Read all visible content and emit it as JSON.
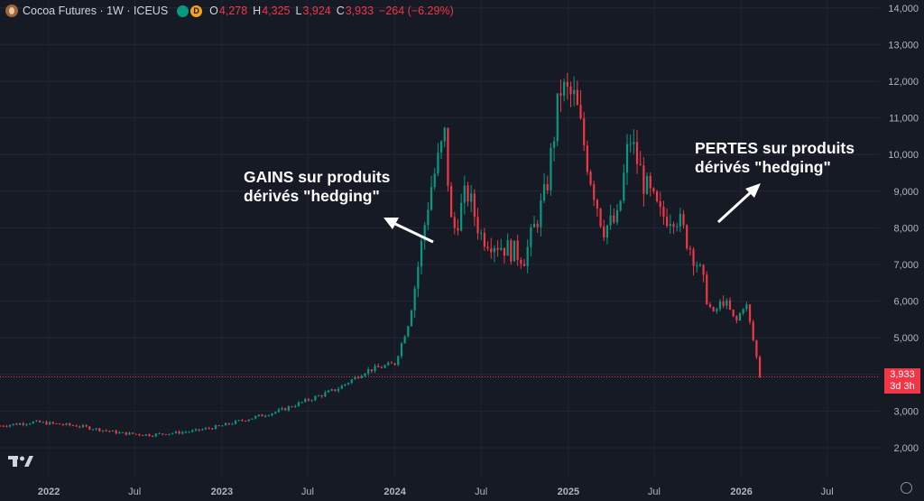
{
  "header": {
    "title": "Cocoa Futures · 1W · ICEUS",
    "open_label": "O",
    "open": "4,278",
    "high_label": "H",
    "high": "4,325",
    "low_label": "L",
    "low": "3,924",
    "close_label": "C",
    "close": "3,933",
    "change": "−264 (−6.29%)",
    "badge_d": "D"
  },
  "price_tag": {
    "price": "3,933",
    "countdown": "3d 3h"
  },
  "annotations": {
    "gains_line1": "GAINS sur produits",
    "gains_line2": "dérivés \"hedging\"",
    "pertes_line1": "PERTES sur produits",
    "pertes_line2": "dérivés \"hedging\""
  },
  "colors": {
    "background": "#161a25",
    "up": "#089981",
    "down": "#f23645",
    "text": "#d1d4dc"
  },
  "icons": [
    "cocoa-logo-icon",
    "tradingview-logo-icon",
    "settings-icon"
  ],
  "chart_data": {
    "type": "candlestick",
    "title": "Cocoa Futures · 1W · ICEUS",
    "ylim": [
      1500,
      14000
    ],
    "y_ticks": [
      2000,
      3000,
      4000,
      5000,
      6000,
      7000,
      8000,
      9000,
      10000,
      11000,
      12000,
      13000,
      14000
    ],
    "y_tick_labels": [
      "2,000",
      "3,000",
      "4,000",
      "5,000",
      "6,000",
      "7,000",
      "8,000",
      "9,000",
      "10,000",
      "11,000",
      "12,000",
      "13,000",
      "14,000"
    ],
    "x_range": [
      "2021-09-20",
      "2026-10-20"
    ],
    "x_ticks": [
      "2022-01-01",
      "2022-07-01",
      "2023-01-01",
      "2023-07-01",
      "2024-01-01",
      "2024-07-01",
      "2025-01-01",
      "2025-07-01",
      "2026-01-01",
      "2026-07-01"
    ],
    "x_tick_labels": [
      "2022",
      "Jul",
      "2023",
      "Jul",
      "2024",
      "Jul",
      "2025",
      "Jul",
      "2026",
      "Jul"
    ],
    "last_price": 3933,
    "weekly_close_anchors": [
      [
        "2021-09-20",
        2600
      ],
      [
        "2021-12-01",
        2700
      ],
      [
        "2022-03-01",
        2600
      ],
      [
        "2022-06-01",
        2400
      ],
      [
        "2022-08-01",
        2350
      ],
      [
        "2022-11-01",
        2450
      ],
      [
        "2023-01-01",
        2600
      ],
      [
        "2023-03-01",
        2800
      ],
      [
        "2023-05-01",
        3000
      ],
      [
        "2023-07-01",
        3300
      ],
      [
        "2023-09-01",
        3600
      ],
      [
        "2023-11-01",
        4100
      ],
      [
        "2024-01-01",
        4300
      ],
      [
        "2024-02-01",
        5500
      ],
      [
        "2024-03-15",
        9000
      ],
      [
        "2024-04-15",
        10500
      ],
      [
        "2024-05-01",
        7800
      ],
      [
        "2024-06-01",
        9000
      ],
      [
        "2024-07-01",
        7800
      ],
      [
        "2024-08-15",
        7500
      ],
      [
        "2024-10-01",
        7200
      ],
      [
        "2024-11-15",
        9000
      ],
      [
        "2024-12-15",
        11800
      ],
      [
        "2025-01-15",
        11500
      ],
      [
        "2025-02-15",
        9500
      ],
      [
        "2025-03-15",
        8000
      ],
      [
        "2025-04-15",
        8200
      ],
      [
        "2025-05-10",
        10500
      ],
      [
        "2025-06-10",
        9200
      ],
      [
        "2025-07-15",
        8300
      ],
      [
        "2025-08-15",
        8400
      ],
      [
        "2025-10-01",
        7000
      ],
      [
        "2025-11-01",
        5600
      ],
      [
        "2025-11-25",
        6100
      ],
      [
        "2025-12-20",
        5400
      ],
      [
        "2026-01-10",
        6000
      ],
      [
        "2026-01-25",
        5000
      ],
      [
        "2026-02-10",
        3933
      ]
    ]
  }
}
